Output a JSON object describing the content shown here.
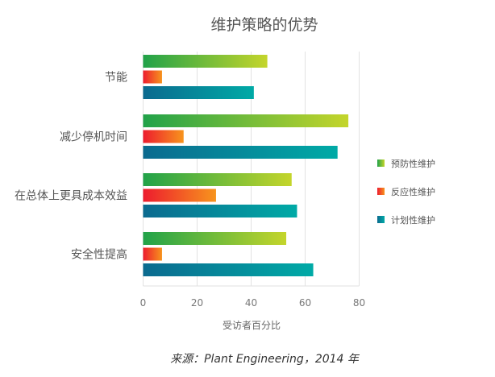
{
  "chart_data": {
    "type": "bar",
    "orientation": "horizontal",
    "title": "维护策略的优势",
    "xlabel": "受访者百分比",
    "ylabel": "",
    "xlim": [
      0,
      80
    ],
    "xticks": [
      "0",
      "20",
      "40",
      "60",
      "80"
    ],
    "grid": true,
    "legend_position": "right",
    "categories": [
      "节能",
      "减少停机时间",
      "在总体上更具成本效益",
      "安全性提高"
    ],
    "series": [
      {
        "name": "预防性维护",
        "values": [
          46,
          76,
          55,
          53
        ],
        "colors": [
          "#21a249",
          "#c4d52b"
        ]
      },
      {
        "name": "反应性维护",
        "values": [
          7,
          15,
          27,
          7
        ],
        "colors": [
          "#ed1c2e",
          "#f7941d"
        ]
      },
      {
        "name": "计划性维护",
        "values": [
          41,
          72,
          57,
          63
        ],
        "colors": [
          "#0b6a8f",
          "#00aaa6"
        ]
      }
    ],
    "source": "来源：Plant Engineering，2014 年"
  }
}
